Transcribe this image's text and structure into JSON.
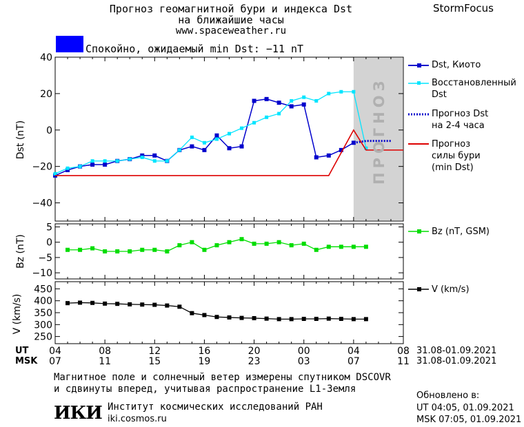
{
  "header": {
    "title_line1": "Прогноз геомагнитной бури и индекса Dst",
    "title_line2": "на ближайшие часы",
    "website": "www.spaceweather.ru",
    "brand": "StormFocus",
    "status_text": "Спокойно, ожидаемый min Dst: −11 nT",
    "status_color": "#0000ff"
  },
  "legend": {
    "dst_kyoto": "Dst, Киото",
    "dst_restored_line1": "Восстановленный",
    "dst_restored_line2": "Dst",
    "forecast_dst_line1": "Прогноз Dst",
    "forecast_dst_line2": "на 2-4 часа",
    "forecast_storm_line1": "Прогноз",
    "forecast_storm_line2": "силы бури",
    "forecast_storm_line3": "(min Dst)",
    "bz": "Bz (nT, GSM)",
    "v": "V (km/s)"
  },
  "axis": {
    "ut_label": "UT",
    "msk_label": "MSK",
    "ut_range": "31.08-01.09.2021",
    "msk_range": "31.08-01.09.2021",
    "forecast_watermark": "ПРОГНОЗ"
  },
  "footer": {
    "note_line1": "Магнитное поле и солнечный ветер измерены спутником DSCOVR",
    "note_line2": "и сдвинуты вперед, учитывая распространение L1-Земля",
    "institute_logo": "ИКИ",
    "institute_name": "Институт космических исследований РАН",
    "institute_site": "iki.cosmos.ru",
    "updated_label": "Обновлено в:",
    "updated_ut": "UT  04:05, 01.09.2021",
    "updated_msk": "MSK 07:05, 01.09.2021"
  },
  "chart_data": [
    {
      "type": "line",
      "ylabel": "Dst (nT)",
      "ylim": [
        -50,
        40
      ],
      "yticks": [
        40,
        20,
        0,
        -20,
        -40
      ],
      "x_hours_ut": [
        4,
        5,
        6,
        7,
        8,
        9,
        10,
        11,
        12,
        13,
        14,
        15,
        16,
        17,
        18,
        19,
        20,
        21,
        22,
        23,
        24,
        25,
        26,
        27,
        28
      ],
      "xlim_hours_ut": [
        4,
        32
      ],
      "forecast_region_start_hour": 28,
      "series": [
        {
          "name": "Dst, Киото",
          "color": "#0000cc",
          "x": [
            4,
            5,
            6,
            7,
            8,
            9,
            10,
            11,
            12,
            13,
            14,
            15,
            16,
            17,
            18,
            19,
            20,
            21,
            22,
            23,
            24,
            25,
            26,
            27,
            28
          ],
          "values": [
            -25,
            -22,
            -20,
            -19,
            -19,
            -17,
            -16,
            -14,
            -14,
            -17,
            -11,
            -9,
            -11,
            -3,
            -10,
            -9,
            16,
            17,
            15,
            13,
            14,
            -15,
            -14,
            -11,
            -7
          ]
        },
        {
          "name": "Восстановленный Dst",
          "color": "#00e5ff",
          "x": [
            4,
            5,
            6,
            7,
            8,
            9,
            10,
            11,
            12,
            13,
            14,
            15,
            16,
            17,
            18,
            19,
            20,
            21,
            22,
            23,
            24,
            25,
            26,
            27,
            28,
            29
          ],
          "values": [
            -24,
            -21,
            -20,
            -17,
            -17,
            -17,
            -16,
            -15,
            -17,
            -17,
            -11,
            -4,
            -7,
            -5,
            -2,
            1,
            4,
            7,
            9,
            16,
            18,
            16,
            20,
            21,
            21,
            -10
          ]
        },
        {
          "name": "Прогноз Dst на 2-4 часа",
          "color": "#0000cc",
          "style": "dotted",
          "x": [
            28,
            29,
            30,
            31
          ],
          "values": [
            -7,
            -6,
            -6,
            -6
          ]
        },
        {
          "name": "Прогноз силы бури (min Dst)",
          "color": "#dd0000",
          "x": [
            4,
            26,
            28,
            29,
            32
          ],
          "values": [
            -25,
            -25,
            0,
            -11,
            -11
          ]
        }
      ]
    },
    {
      "type": "line",
      "ylabel": "Bz (nT)",
      "ylim": [
        -12,
        6
      ],
      "yticks": [
        5,
        0,
        -5,
        -10
      ],
      "series": [
        {
          "name": "Bz (nT, GSM)",
          "color": "#00dd00",
          "x": [
            5,
            6,
            7,
            8,
            9,
            10,
            11,
            12,
            13,
            14,
            15,
            16,
            17,
            18,
            19,
            20,
            21,
            22,
            23,
            24,
            25,
            26,
            27,
            28,
            29
          ],
          "values": [
            -2.5,
            -2.5,
            -2,
            -3,
            -3,
            -3,
            -2.5,
            -2.5,
            -3,
            -1,
            0,
            -2.5,
            -1,
            0,
            1,
            -0.5,
            -0.5,
            0,
            -1,
            -0.5,
            -2.5,
            -1.5,
            -1.5,
            -1.5,
            -1.5
          ]
        }
      ]
    },
    {
      "type": "line",
      "ylabel": "V (km/s)",
      "ylim": [
        220,
        480
      ],
      "yticks": [
        450,
        400,
        350,
        300,
        250
      ],
      "series": [
        {
          "name": "V (km/s)",
          "color": "#000000",
          "x": [
            5,
            6,
            7,
            8,
            9,
            10,
            11,
            12,
            13,
            14,
            15,
            16,
            17,
            18,
            19,
            20,
            21,
            22,
            23,
            24,
            25,
            26,
            27,
            28,
            29
          ],
          "values": [
            390,
            392,
            391,
            388,
            387,
            385,
            384,
            383,
            380,
            375,
            348,
            340,
            332,
            330,
            328,
            327,
            325,
            323,
            323,
            324,
            324,
            325,
            324,
            323,
            323
          ]
        }
      ]
    }
  ],
  "x_ticks": {
    "ut": [
      "04",
      "08",
      "12",
      "16",
      "20",
      "00",
      "04",
      "08"
    ],
    "msk": [
      "07",
      "11",
      "15",
      "19",
      "23",
      "03",
      "07",
      "11"
    ]
  }
}
